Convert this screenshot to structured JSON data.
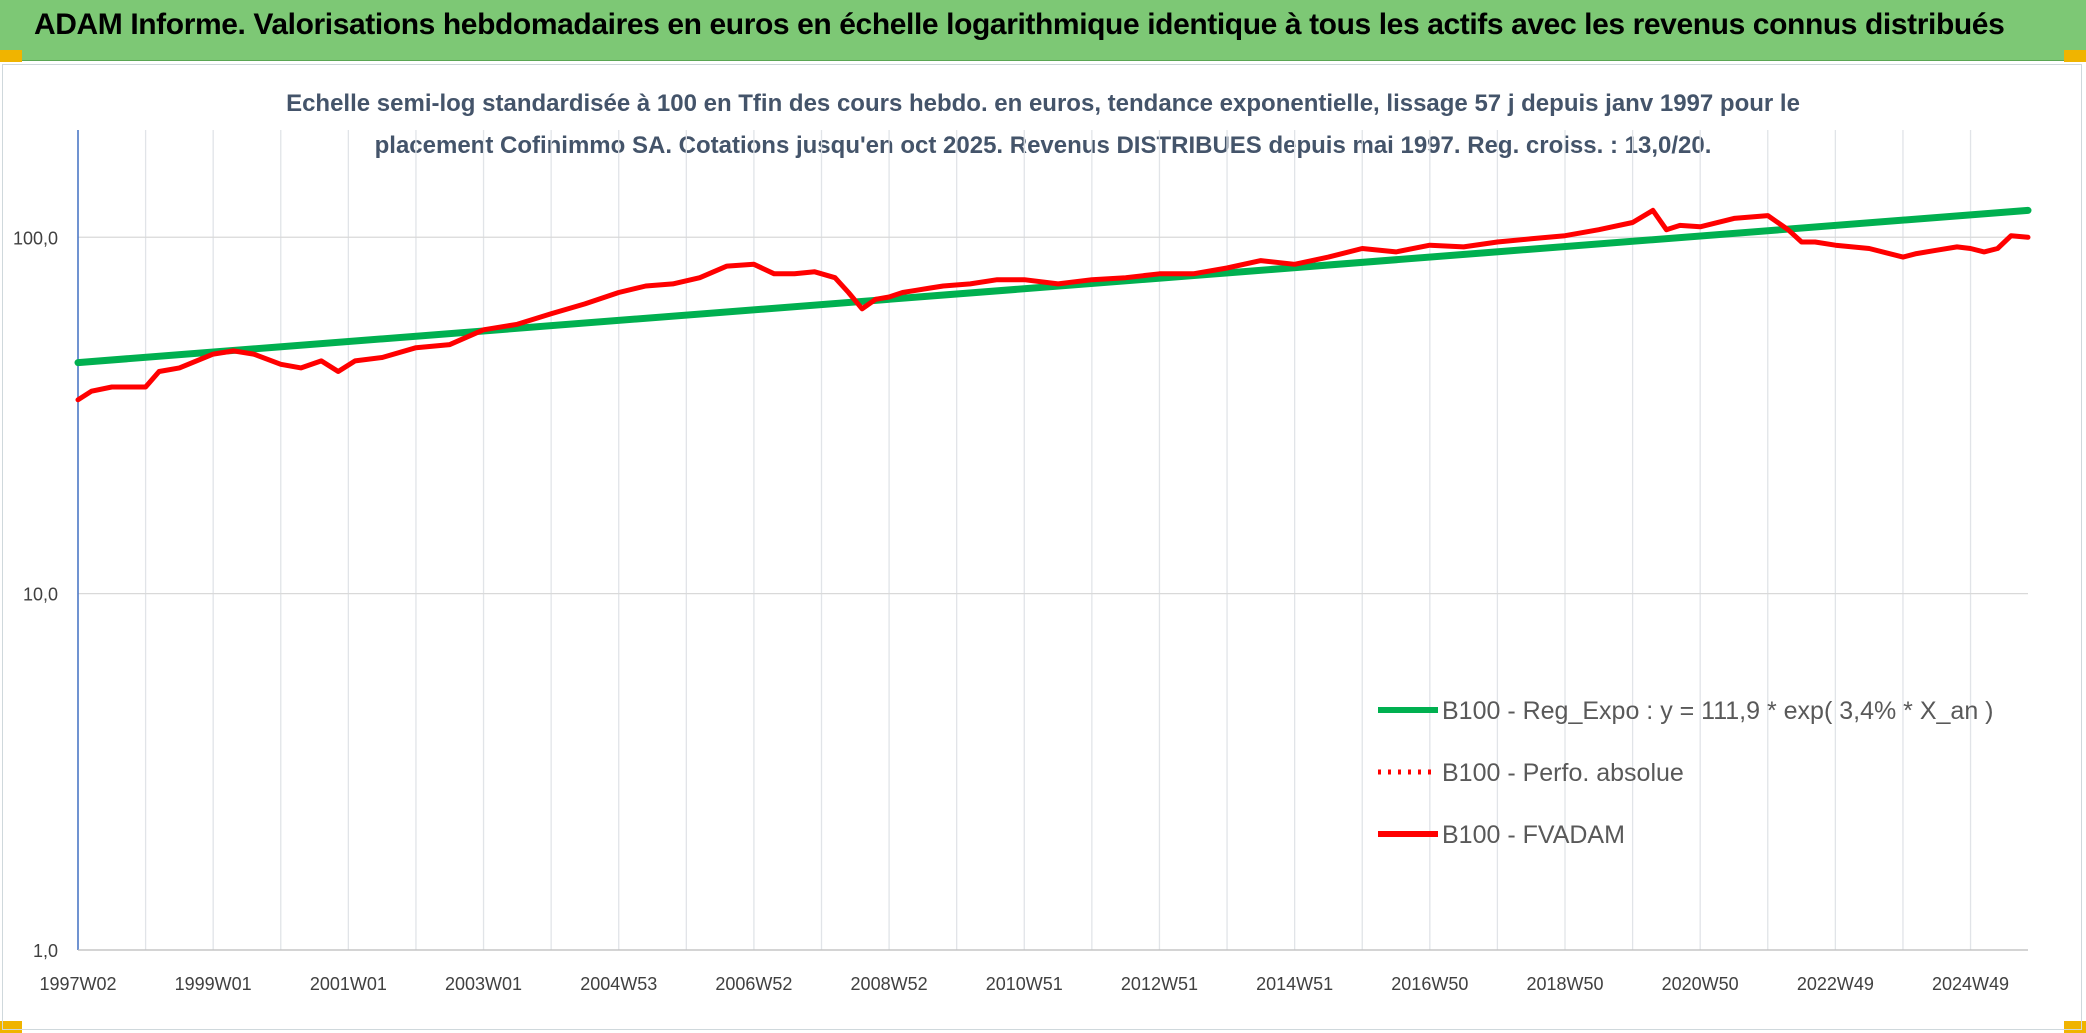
{
  "header": {
    "title": "ADAM Informe. Valorisations hebdomadaires en euros en échelle logarithmique identique à tous les actifs avec les revenus connus distribués"
  },
  "chart_data": {
    "type": "line",
    "title_line1": "Echelle semi-log standardisée à 100 en Tfin des cours hebdo. en euros, tendance exponentielle, lissage 57 j depuis janv 1997 pour le",
    "title_line2": "placement Cofinimmo SA. Cotations jusqu'en oct 2025. Revenus DISTRIBUES depuis mai 1997. Reg. croiss. : 13,0/20.",
    "yscale": "log",
    "ylim": [
      1,
      200
    ],
    "y_ticks": [
      {
        "value": 1,
        "label": "1,0"
      },
      {
        "value": 10,
        "label": "10,0"
      },
      {
        "value": 100,
        "label": "100,0"
      }
    ],
    "xlim": [
      1997.0,
      2025.85
    ],
    "x_ticks": [
      {
        "t": 1997.0,
        "label": "1997W02"
      },
      {
        "t": 1999.0,
        "label": "1999W01"
      },
      {
        "t": 2001.0,
        "label": "2001W01"
      },
      {
        "t": 2003.0,
        "label": "2003W01"
      },
      {
        "t": 2005.0,
        "label": "2004W53"
      },
      {
        "t": 2007.0,
        "label": "2006W52"
      },
      {
        "t": 2009.0,
        "label": "2008W52"
      },
      {
        "t": 2011.0,
        "label": "2010W51"
      },
      {
        "t": 2013.0,
        "label": "2012W51"
      },
      {
        "t": 2015.0,
        "label": "2014W51"
      },
      {
        "t": 2017.0,
        "label": "2016W50"
      },
      {
        "t": 2019.0,
        "label": "2018W50"
      },
      {
        "t": 2021.0,
        "label": "2020W50"
      },
      {
        "t": 2023.0,
        "label": "2022W49"
      },
      {
        "t": 2025.0,
        "label": "2024W49"
      }
    ],
    "grid": true,
    "legend_position": "bottom-right",
    "series": [
      {
        "name": "B100 - Reg_Expo : y = 111,9 * exp( 3,4% *  X_an )",
        "color": "#00b050",
        "style": "solid",
        "x": [
          1997.0,
          2025.85
        ],
        "y": [
          44.5,
          119.0
        ]
      },
      {
        "name": "B100 - Perfo. absolue",
        "color": "#ff0000",
        "style": "dotted",
        "x": [],
        "y": []
      },
      {
        "name": "B100 - FVADAM",
        "color": "#ff0000",
        "style": "solid",
        "x": [
          1997.0,
          1997.2,
          1997.5,
          1998.0,
          1998.2,
          1998.5,
          1999.0,
          1999.3,
          1999.6,
          2000.0,
          2000.3,
          2000.6,
          2000.85,
          2001.1,
          2001.5,
          2002.0,
          2002.5,
          2003.0,
          2003.5,
          2004.0,
          2004.5,
          2005.0,
          2005.4,
          2005.8,
          2006.2,
          2006.6,
          2007.0,
          2007.3,
          2007.6,
          2007.9,
          2008.2,
          2008.4,
          2008.6,
          2008.8,
          2009.0,
          2009.2,
          2009.4,
          2009.6,
          2009.8,
          2010.2,
          2010.6,
          2011.0,
          2011.5,
          2012.0,
          2012.5,
          2013.0,
          2013.5,
          2014.0,
          2014.5,
          2015.0,
          2015.5,
          2016.0,
          2016.5,
          2017.0,
          2017.5,
          2018.0,
          2018.5,
          2019.0,
          2019.5,
          2020.0,
          2020.3,
          2020.5,
          2020.7,
          2021.0,
          2021.5,
          2022.0,
          2022.3,
          2022.5,
          2022.7,
          2023.0,
          2023.5,
          2024.0,
          2024.2,
          2024.5,
          2024.8,
          2025.0,
          2025.2,
          2025.4,
          2025.6,
          2025.85
        ],
        "y": [
          35,
          37,
          38,
          38,
          42,
          43,
          47,
          48,
          47,
          44,
          43,
          45,
          42,
          45,
          46,
          49,
          50,
          55,
          57,
          61,
          65,
          70,
          73,
          74,
          77,
          83,
          84,
          79,
          79,
          80,
          77,
          70,
          63,
          67,
          68,
          70,
          71,
          72,
          73,
          74,
          76,
          76,
          74,
          76,
          77,
          79,
          79,
          82,
          86,
          84,
          88,
          93,
          91,
          95,
          94,
          97,
          99,
          101,
          105,
          110,
          119,
          105,
          108,
          107,
          113,
          115,
          105,
          97,
          97,
          95,
          93,
          88,
          90,
          92,
          94,
          93,
          91,
          93,
          101,
          100
        ]
      }
    ]
  }
}
